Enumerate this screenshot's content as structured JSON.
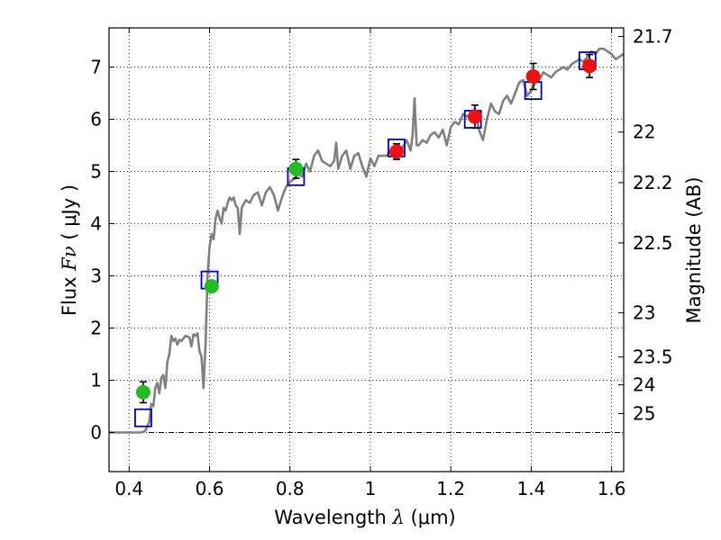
{
  "chart_data": {
    "type": "scatter",
    "xlabel": "Wavelength",
    "xlabel_symbol": "λ",
    "xlabel_unit": "(μm)",
    "ylabel": "Flux",
    "ylabel_symbol": "Fν",
    "ylabel_unit": "( μJy )",
    "y2label": "Magnitude (AB)",
    "xlim": [
      0.35,
      1.63
    ],
    "ylim": [
      -0.75,
      7.75
    ],
    "grid": true,
    "grid_style": "dotted",
    "x_ticks": [
      0.4,
      0.6,
      0.8,
      1.0,
      1.2,
      1.4,
      1.6
    ],
    "x_tick_labels": [
      "0.4",
      "0.6",
      "0.8",
      "1",
      "1.2",
      "1.4",
      "1.6"
    ],
    "y_ticks": [
      0,
      1,
      2,
      3,
      4,
      5,
      6,
      7
    ],
    "y_tick_labels": [
      "0",
      "1",
      "2",
      "3",
      "4",
      "5",
      "6",
      "7"
    ],
    "mag_ticks": [
      {
        "mag": 21.7,
        "label": "21.7"
      },
      {
        "mag": 22,
        "label": "22"
      },
      {
        "mag": 22.2,
        "label": "22.2"
      },
      {
        "mag": 22.5,
        "label": "22.5"
      },
      {
        "mag": 23,
        "label": "23"
      },
      {
        "mag": 23.5,
        "label": "23.5"
      },
      {
        "mag": 24,
        "label": "24"
      },
      {
        "mag": 25,
        "label": "25"
      }
    ],
    "colors": {
      "spectrum": "#808080",
      "model_box": "#0000cc",
      "green_points": "#22bb22",
      "red_points": "#ee1111",
      "errorbar": "#000000",
      "zero_line": "#000000"
    },
    "spectrum": [
      [
        0.35,
        0.0
      ],
      [
        0.43,
        0.0
      ],
      [
        0.44,
        0.03
      ],
      [
        0.45,
        0.2
      ],
      [
        0.455,
        0.55
      ],
      [
        0.46,
        0.5
      ],
      [
        0.465,
        0.85
      ],
      [
        0.47,
        0.95
      ],
      [
        0.475,
        0.75
      ],
      [
        0.48,
        1.05
      ],
      [
        0.485,
        1.1
      ],
      [
        0.49,
        0.85
      ],
      [
        0.495,
        1.35
      ],
      [
        0.5,
        1.5
      ],
      [
        0.505,
        1.85
      ],
      [
        0.51,
        1.75
      ],
      [
        0.515,
        1.8
      ],
      [
        0.52,
        1.68
      ],
      [
        0.525,
        1.78
      ],
      [
        0.53,
        1.75
      ],
      [
        0.54,
        1.85
      ],
      [
        0.55,
        1.82
      ],
      [
        0.555,
        1.65
      ],
      [
        0.56,
        1.88
      ],
      [
        0.565,
        1.85
      ],
      [
        0.57,
        1.9
      ],
      [
        0.575,
        1.55
      ],
      [
        0.58,
        1.45
      ],
      [
        0.585,
        0.85
      ],
      [
        0.59,
        1.7
      ],
      [
        0.595,
        3.0
      ],
      [
        0.6,
        3.55
      ],
      [
        0.605,
        3.8
      ],
      [
        0.61,
        3.7
      ],
      [
        0.615,
        4.1
      ],
      [
        0.62,
        4.25
      ],
      [
        0.625,
        4.1
      ],
      [
        0.63,
        4.0
      ],
      [
        0.635,
        4.3
      ],
      [
        0.64,
        4.25
      ],
      [
        0.645,
        4.4
      ],
      [
        0.65,
        4.5
      ],
      [
        0.655,
        4.45
      ],
      [
        0.66,
        4.5
      ],
      [
        0.665,
        4.35
      ],
      [
        0.67,
        4.3
      ],
      [
        0.675,
        3.8
      ],
      [
        0.68,
        4.3
      ],
      [
        0.69,
        4.45
      ],
      [
        0.7,
        4.4
      ],
      [
        0.71,
        4.55
      ],
      [
        0.72,
        4.6
      ],
      [
        0.73,
        4.35
      ],
      [
        0.74,
        4.6
      ],
      [
        0.75,
        4.7
      ],
      [
        0.76,
        4.55
      ],
      [
        0.77,
        4.25
      ],
      [
        0.78,
        4.5
      ],
      [
        0.79,
        4.7
      ],
      [
        0.8,
        4.8
      ],
      [
        0.81,
        4.85
      ],
      [
        0.82,
        4.95
      ],
      [
        0.83,
        4.9
      ],
      [
        0.84,
        5.15
      ],
      [
        0.85,
        5.0
      ],
      [
        0.86,
        5.3
      ],
      [
        0.87,
        5.4
      ],
      [
        0.88,
        5.2
      ],
      [
        0.89,
        5.15
      ],
      [
        0.9,
        5.1
      ],
      [
        0.91,
        5.2
      ],
      [
        0.915,
        5.55
      ],
      [
        0.92,
        5.05
      ],
      [
        0.93,
        5.3
      ],
      [
        0.94,
        5.4
      ],
      [
        0.95,
        5.05
      ],
      [
        0.96,
        5.3
      ],
      [
        0.97,
        5.35
      ],
      [
        0.98,
        5.1
      ],
      [
        0.99,
        4.9
      ],
      [
        1.0,
        5.25
      ],
      [
        1.01,
        5.1
      ],
      [
        1.02,
        5.3
      ],
      [
        1.03,
        5.3
      ],
      [
        1.04,
        5.3
      ],
      [
        1.05,
        5.4
      ],
      [
        1.06,
        5.45
      ],
      [
        1.07,
        5.5
      ],
      [
        1.08,
        5.45
      ],
      [
        1.09,
        5.6
      ],
      [
        1.1,
        5.4
      ],
      [
        1.105,
        5.7
      ],
      [
        1.11,
        6.4
      ],
      [
        1.115,
        5.5
      ],
      [
        1.12,
        5.5
      ],
      [
        1.13,
        5.6
      ],
      [
        1.14,
        5.55
      ],
      [
        1.15,
        5.7
      ],
      [
        1.16,
        5.75
      ],
      [
        1.17,
        5.65
      ],
      [
        1.18,
        5.8
      ],
      [
        1.19,
        5.5
      ],
      [
        1.2,
        5.85
      ],
      [
        1.21,
        5.95
      ],
      [
        1.22,
        5.9
      ],
      [
        1.23,
        6.1
      ],
      [
        1.24,
        6.05
      ],
      [
        1.25,
        6.1
      ],
      [
        1.26,
        6.2
      ],
      [
        1.27,
        5.8
      ],
      [
        1.28,
        5.6
      ],
      [
        1.29,
        6.0
      ],
      [
        1.3,
        6.3
      ],
      [
        1.31,
        6.15
      ],
      [
        1.32,
        6.1
      ],
      [
        1.33,
        6.35
      ],
      [
        1.34,
        6.45
      ],
      [
        1.35,
        6.3
      ],
      [
        1.36,
        6.5
      ],
      [
        1.37,
        6.7
      ],
      [
        1.38,
        6.75
      ],
      [
        1.39,
        6.45
      ],
      [
        1.4,
        6.55
      ],
      [
        1.41,
        6.7
      ],
      [
        1.42,
        6.75
      ],
      [
        1.43,
        6.9
      ],
      [
        1.44,
        6.85
      ],
      [
        1.45,
        6.8
      ],
      [
        1.46,
        6.9
      ],
      [
        1.47,
        6.95
      ],
      [
        1.48,
        7.0
      ],
      [
        1.49,
        6.95
      ],
      [
        1.5,
        7.05
      ],
      [
        1.51,
        7.1
      ],
      [
        1.52,
        7.15
      ],
      [
        1.53,
        7.1
      ],
      [
        1.54,
        7.2
      ],
      [
        1.55,
        7.3
      ],
      [
        1.56,
        7.25
      ],
      [
        1.57,
        7.35
      ],
      [
        1.58,
        7.35
      ],
      [
        1.59,
        7.3
      ],
      [
        1.6,
        7.25
      ],
      [
        1.61,
        7.15
      ],
      [
        1.62,
        7.2
      ],
      [
        1.63,
        7.25
      ]
    ],
    "model_boxes": [
      {
        "x": 0.435,
        "y": 0.28
      },
      {
        "x": 0.6,
        "y": 2.92
      },
      {
        "x": 0.815,
        "y": 4.9
      },
      {
        "x": 1.065,
        "y": 5.45
      },
      {
        "x": 1.255,
        "y": 6.0
      },
      {
        "x": 1.405,
        "y": 6.55
      },
      {
        "x": 1.54,
        "y": 7.12
      }
    ],
    "points_green": [
      {
        "x": 0.435,
        "y": 0.77,
        "err": 0.2
      },
      {
        "x": 0.605,
        "y": 2.8,
        "err": 0.08
      },
      {
        "x": 0.815,
        "y": 5.05,
        "err": 0.18
      }
    ],
    "points_red": [
      {
        "x": 1.065,
        "y": 5.38,
        "err": 0.15
      },
      {
        "x": 1.26,
        "y": 6.05,
        "err": 0.22
      },
      {
        "x": 1.405,
        "y": 6.82,
        "err": 0.25
      },
      {
        "x": 1.545,
        "y": 7.02,
        "err": 0.22
      }
    ]
  }
}
